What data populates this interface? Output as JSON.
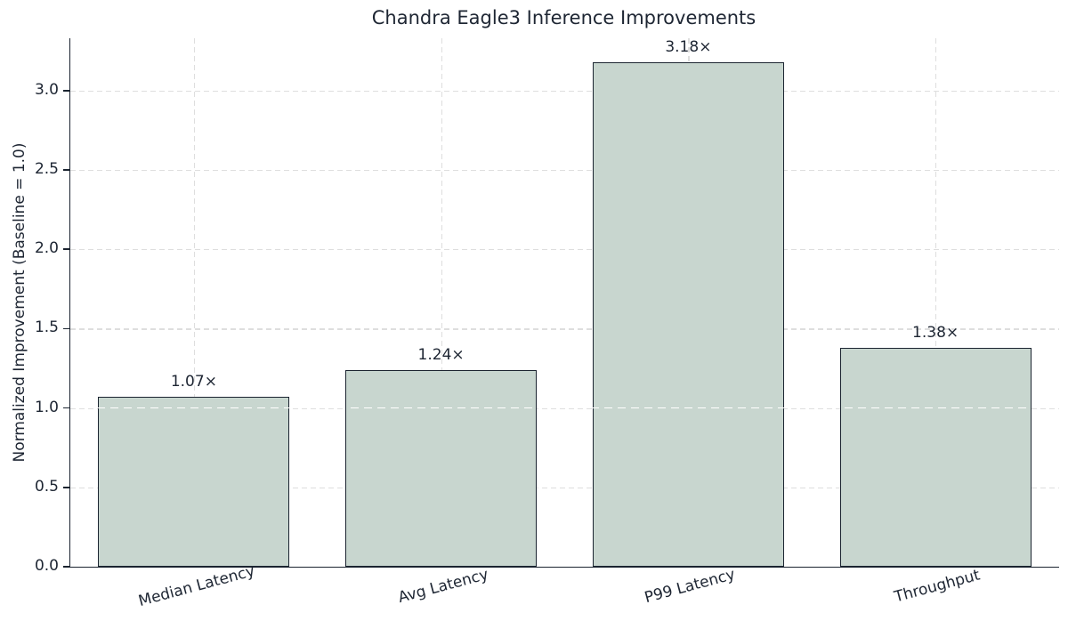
{
  "chart_data": {
    "type": "bar",
    "title": "Chandra Eagle3 Inference Improvements",
    "xlabel": "",
    "ylabel": "Normalized Improvement (Baseline = 1.0)",
    "categories": [
      "Median Latency",
      "Avg Latency",
      "P99 Latency",
      "Throughput"
    ],
    "values": [
      1.07,
      1.24,
      3.18,
      1.38
    ],
    "bar_labels": [
      "1.07×",
      "1.24×",
      "3.18×",
      "1.38×"
    ],
    "yticks": [
      0.0,
      0.5,
      1.0,
      1.5,
      2.0,
      2.5,
      3.0
    ],
    "ytick_labels": [
      "0.0",
      "0.5",
      "1.0",
      "1.5",
      "2.0",
      "2.5",
      "3.0"
    ],
    "ylim": [
      0,
      3.33
    ],
    "baseline": 1.0,
    "grid": true,
    "legend": "none",
    "colors": {
      "bar_fill": "#c8d6cf",
      "bar_edge": "#1b2430",
      "text": "#1e2633",
      "grid": "#dedede",
      "baseline_line": "#ffffff",
      "background": "#ffffff"
    }
  }
}
